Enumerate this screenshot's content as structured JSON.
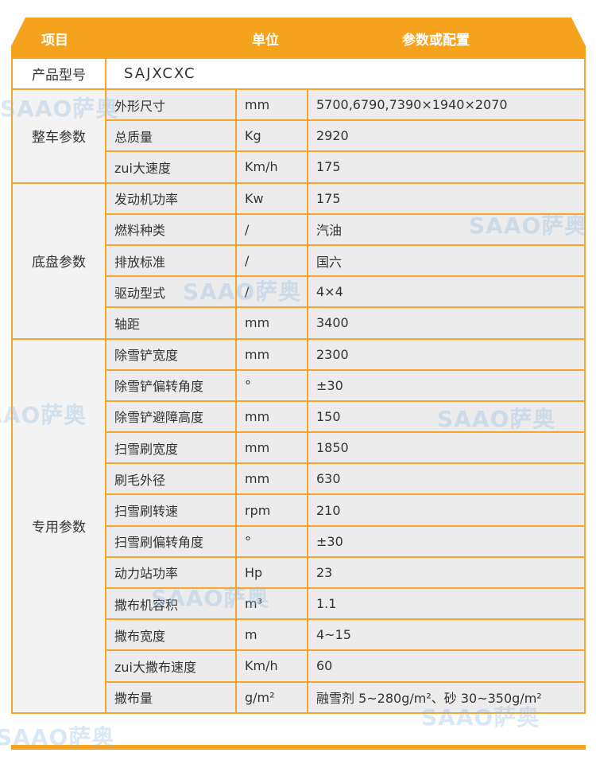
{
  "header": {
    "col_item": "项目",
    "col_unit": "单位",
    "col_value": "参数或配置"
  },
  "model": {
    "label": "产品型号",
    "value": "SAJXCXC"
  },
  "groups": [
    {
      "name": "整车参数",
      "rows": [
        {
          "param": "外形尺寸",
          "unit": "mm",
          "value": "5700,6790,7390×1940×2070"
        },
        {
          "param": "总质量",
          "unit": "Kg",
          "value": "2920"
        },
        {
          "param": "zui大速度",
          "unit": "Km/h",
          "value": "175"
        }
      ]
    },
    {
      "name": "底盘参数",
      "rows": [
        {
          "param": "发动机功率",
          "unit": "Kw",
          "value": "175"
        },
        {
          "param": "燃料种类",
          "unit": "/",
          "value": "汽油"
        },
        {
          "param": "排放标准",
          "unit": "/",
          "value": "国六"
        },
        {
          "param": "驱动型式",
          "unit": "/",
          "value": "4×4"
        },
        {
          "param": "轴距",
          "unit": "mm",
          "value": "3400"
        }
      ]
    },
    {
      "name": "专用参数",
      "rows": [
        {
          "param": "除雪铲宽度",
          "unit": "mm",
          "value": "2300"
        },
        {
          "param": "除雪铲偏转角度",
          "unit": "°",
          "value": "±30"
        },
        {
          "param": "除雪铲避障高度",
          "unit": "mm",
          "value": "150"
        },
        {
          "param": "扫雪刷宽度",
          "unit": "mm",
          "value": "1850"
        },
        {
          "param": "刷毛外径",
          "unit": "mm",
          "value": "630"
        },
        {
          "param": "扫雪刷转速",
          "unit": "rpm",
          "value": "210"
        },
        {
          "param": "扫雪刷偏转角度",
          "unit": "°",
          "value": "±30"
        },
        {
          "param": "动力站功率",
          "unit": "Hp",
          "value": "23"
        },
        {
          "param": "撒布机容积",
          "unit": "m³",
          "value": "1.1"
        },
        {
          "param": "撒布宽度",
          "unit": "m",
          "value": "4~15"
        },
        {
          "param": "zui大撒布速度",
          "unit": "Km/h",
          "value": "60"
        },
        {
          "param": "撒布量",
          "unit": "g/m²",
          "value": "融雪剂 5~280g/m²、砂 30~350g/m²"
        }
      ]
    }
  ],
  "watermark": "SAAO萨奥",
  "colors": {
    "accent": "#f5a21c",
    "border": "#f5a62a",
    "row_bg": "#ececec"
  }
}
